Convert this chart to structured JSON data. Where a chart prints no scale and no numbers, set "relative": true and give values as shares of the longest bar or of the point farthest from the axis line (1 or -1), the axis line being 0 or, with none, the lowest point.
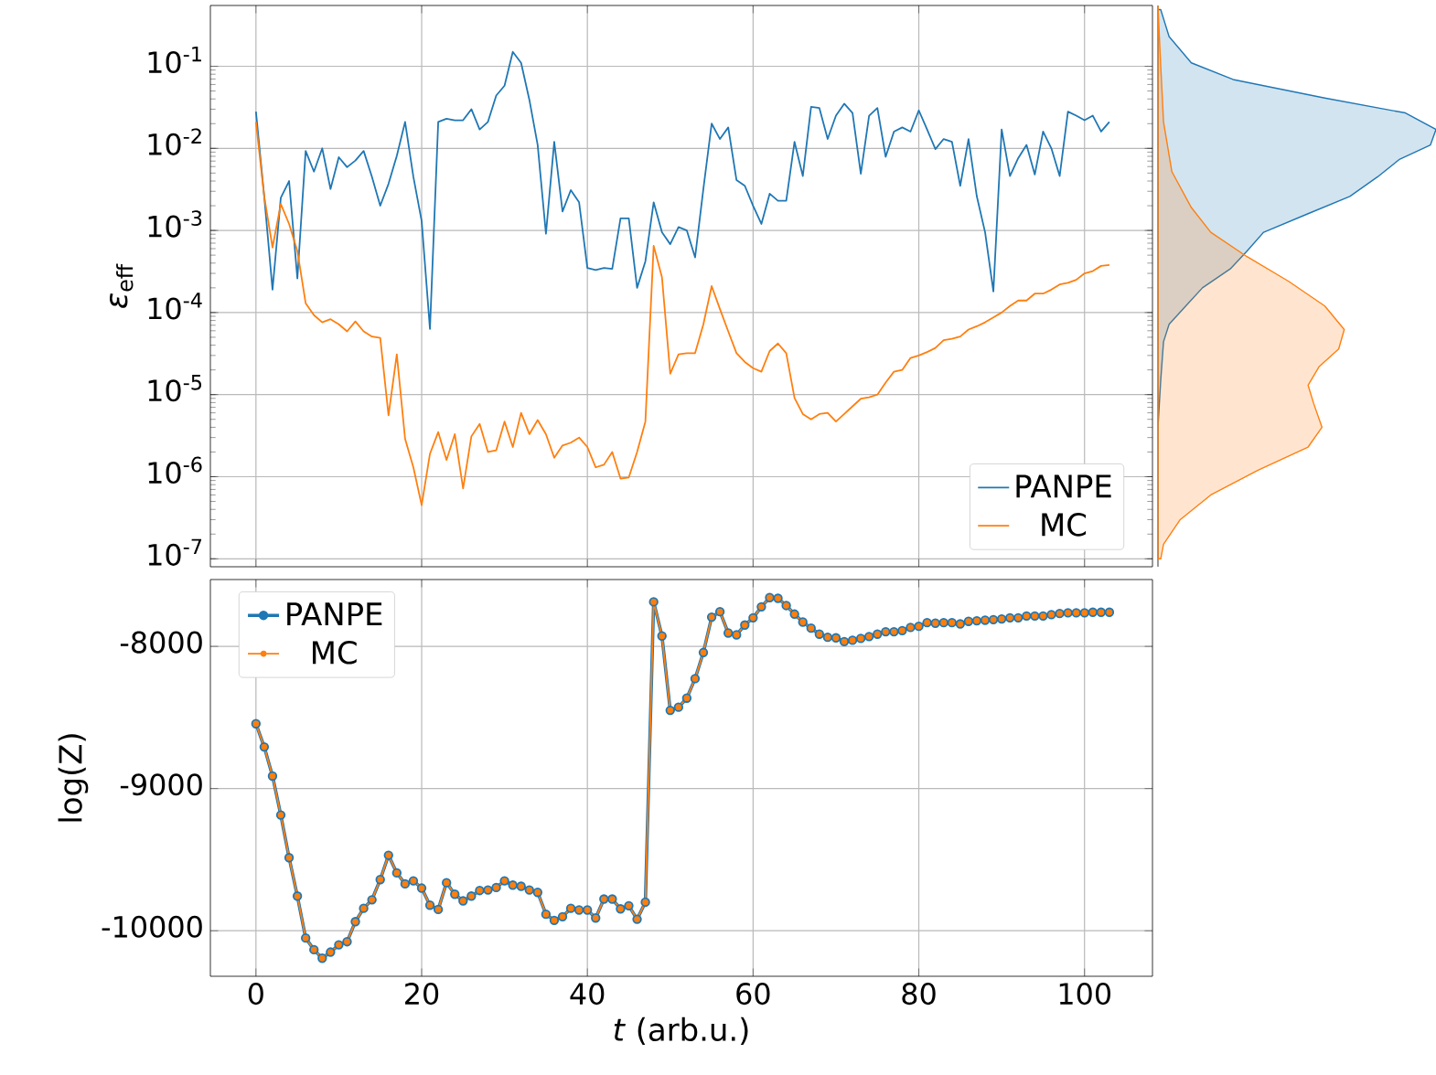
{
  "chart_data": [
    {
      "type": "line",
      "ylabel": "*ε*$_{eff}$",
      "log": "y",
      "grid": true,
      "legend": "bottom right",
      "tick_labels": "y",
      "xlim": [
        -5.5,
        108.2
      ],
      "xticks": [
        0,
        20,
        40,
        60,
        80,
        100
      ],
      "ylim": [
        8e-08,
        0.55
      ],
      "yticks": [
        {
          "value": 1e-07,
          "label": "10$^{-7}$"
        },
        {
          "value": 1e-06,
          "label": "10$^{-6}$"
        },
        {
          "value": 1e-05,
          "label": "10$^{-5}$"
        },
        {
          "value": 0.0001,
          "label": "10$^{-4}$"
        },
        {
          "value": 0.001,
          "label": "10$^{-3}$"
        },
        {
          "value": 0.01,
          "label": "10$^{-2}$"
        },
        {
          "value": 0.1,
          "label": "10$^{-1}$"
        }
      ],
      "x": [
        0,
        1,
        2,
        3,
        4,
        5,
        6,
        7,
        8,
        9,
        10,
        11,
        12,
        13,
        14,
        15,
        16,
        17,
        18,
        19,
        20,
        21,
        22,
        23,
        24,
        25,
        26,
        27,
        28,
        29,
        30,
        31,
        32,
        33,
        34,
        35,
        36,
        37,
        38,
        39,
        40,
        41,
        42,
        43,
        44,
        45,
        46,
        47,
        48,
        49,
        50,
        51,
        52,
        53,
        54,
        55,
        56,
        57,
        58,
        59,
        60,
        61,
        62,
        63,
        64,
        65,
        66,
        67,
        68,
        69,
        70,
        71,
        72,
        73,
        74,
        75,
        76,
        77,
        78,
        79,
        80,
        81,
        82,
        83,
        84,
        85,
        86,
        87,
        88,
        89,
        90,
        91,
        92,
        93,
        94,
        95,
        96,
        97,
        98,
        99,
        100,
        101,
        102,
        103
      ],
      "series": [
        {
          "name": "PANPE",
          "color": "#1f77b4",
          "values": [
            0.028,
            0.0026,
            0.00019,
            0.0025,
            0.004,
            0.00026,
            0.0093,
            0.0052,
            0.01,
            0.0032,
            0.0078,
            0.0059,
            0.0071,
            0.0093,
            0.0045,
            0.002,
            0.0037,
            0.0081,
            0.021,
            0.0045,
            0.0013,
            6.3e-05,
            0.021,
            0.023,
            0.022,
            0.022,
            0.03,
            0.017,
            0.021,
            0.044,
            0.058,
            0.15,
            0.11,
            0.039,
            0.011,
            0.00091,
            0.012,
            0.0017,
            0.0031,
            0.0022,
            0.00035,
            0.00033,
            0.00035,
            0.00034,
            0.0014,
            0.0014,
            0.0002,
            0.00042,
            0.0022,
            0.00095,
            0.00068,
            0.0011,
            0.001,
            0.00047,
            0.0032,
            0.02,
            0.013,
            0.018,
            0.0041,
            0.0035,
            0.002,
            0.0012,
            0.0028,
            0.0023,
            0.0023,
            0.012,
            0.0046,
            0.032,
            0.031,
            0.013,
            0.025,
            0.035,
            0.027,
            0.0049,
            0.025,
            0.031,
            0.0079,
            0.016,
            0.018,
            0.016,
            0.029,
            0.017,
            0.0098,
            0.013,
            0.012,
            0.0035,
            0.013,
            0.0026,
            0.00095,
            0.00018,
            0.017,
            0.0046,
            0.0076,
            0.011,
            0.0048,
            0.016,
            0.01,
            0.0046,
            0.028,
            0.025,
            0.022,
            0.025,
            0.016,
            0.021
          ]
        },
        {
          "name": "MC",
          "color": "#ff7f0e",
          "values": [
            0.021,
            0.0026,
            0.00062,
            0.0021,
            0.0012,
            0.00056,
            0.00013,
            9.3e-05,
            7.6e-05,
            8.3e-05,
            7.2e-05,
            5.9e-05,
            7.8e-05,
            5.9e-05,
            5.1e-05,
            4.9e-05,
            5.6e-06,
            3.1e-05,
            2.9e-06,
            1.3e-06,
            4.5e-07,
            1.9e-06,
            3.5e-06,
            1.6e-06,
            3.3e-06,
            7.2e-07,
            3.1e-06,
            4.4e-06,
            2e-06,
            2.1e-06,
            4.7e-06,
            2.3e-06,
            6e-06,
            3.3e-06,
            4.9e-06,
            3.3e-06,
            1.7e-06,
            2.4e-06,
            2.6e-06,
            3e-06,
            2.3e-06,
            1.3e-06,
            1.4e-06,
            2e-06,
            9.5e-07,
            9.8e-07,
            2e-06,
            4.7e-06,
            0.00065,
            0.00027,
            1.8e-05,
            3.1e-05,
            3.2e-05,
            3.2e-05,
            7.2e-05,
            0.00021,
            0.00011,
            5.9e-05,
            3.2e-05,
            2.5e-05,
            2.1e-05,
            1.9e-05,
            3.4e-05,
            4.2e-05,
            3.2e-05,
            9.1e-06,
            5.8e-06,
            5e-06,
            5.8e-06,
            6e-06,
            4.7e-06,
            5.8e-06,
            7.2e-06,
            8.9e-06,
            9.3e-06,
            1e-05,
            1.4e-05,
            1.9e-05,
            2e-05,
            2.8e-05,
            3e-05,
            3.3e-05,
            3.7e-05,
            4.6e-05,
            4.8e-05,
            5.1e-05,
            6.2e-05,
            6.8e-05,
            7.6e-05,
            8.7e-05,
            0.0001,
            0.00012,
            0.00014,
            0.00014,
            0.00017,
            0.00017,
            0.00019,
            0.00022,
            0.00023,
            0.00025,
            0.0003,
            0.00032,
            0.00037,
            0.00038
          ]
        }
      ]
    },
    {
      "type": "area",
      "orientation": "horizontal",
      "relative": true,
      "log": "y",
      "ylim": [
        8e-08,
        0.55
      ],
      "tick_labels": false,
      "series": [
        {
          "color": "#1f77b4",
          "x": [
            0.49,
            0.23,
            0.11,
            0.069,
            0.041,
            0.027,
            0.017,
            0.011,
            0.0074,
            0.0045,
            0.0026,
            0.0016,
            0.00095,
            0.00056,
            0.00034,
            0.0002,
            0.00012,
            7.2e-05,
            4.4e-05,
            1.5e-05,
            4e-06,
            1e-07
          ],
          "values": [
            0.01,
            0.04,
            0.12,
            0.27,
            0.6,
            0.89,
            1,
            0.98,
            0.87,
            0.79,
            0.69,
            0.54,
            0.38,
            0.32,
            0.26,
            0.16,
            0.1,
            0.04,
            0.02,
            0.01,
            0,
            0
          ]
        },
        {
          "color": "#ff7f0e",
          "x": [
            0.54,
            0.1,
            0.021,
            0.0052,
            0.0019,
            0.00095,
            0.00048,
            0.00024,
            0.00012,
            6.2e-05,
            3.6e-05,
            2.2e-05,
            1.3e-05,
            7.8e-06,
            4e-06,
            2.3e-06,
            1.2e-06,
            6e-07,
            3e-07,
            1.5e-07,
            1e-07
          ],
          "values": [
            0,
            0.01,
            0.02,
            0.05,
            0.12,
            0.19,
            0.32,
            0.47,
            0.6,
            0.67,
            0.65,
            0.58,
            0.54,
            0.56,
            0.59,
            0.54,
            0.36,
            0.19,
            0.08,
            0.02,
            0.01
          ]
        }
      ]
    },
    {
      "type": "line",
      "xlabel": "*t* (arb.u.)",
      "ylabel": "log(Z)",
      "grid": true,
      "legend": "top left",
      "marker": "circle",
      "xlim": [
        -5.5,
        108.2
      ],
      "xticks": [
        0,
        20,
        40,
        60,
        80,
        100
      ],
      "ylim": [
        -10320,
        -7530
      ],
      "yticks": [
        -8000,
        -9000,
        -10000
      ],
      "x": [
        0,
        1,
        2,
        3,
        4,
        5,
        6,
        7,
        8,
        9,
        10,
        11,
        12,
        13,
        14,
        15,
        16,
        17,
        18,
        19,
        20,
        21,
        22,
        23,
        24,
        25,
        26,
        27,
        28,
        29,
        30,
        31,
        32,
        33,
        34,
        35,
        36,
        37,
        38,
        39,
        40,
        41,
        42,
        43,
        44,
        45,
        46,
        47,
        48,
        49,
        50,
        51,
        52,
        53,
        54,
        55,
        56,
        57,
        58,
        59,
        60,
        61,
        62,
        63,
        64,
        65,
        66,
        67,
        68,
        69,
        70,
        71,
        72,
        73,
        74,
        75,
        76,
        77,
        78,
        79,
        80,
        81,
        82,
        83,
        84,
        85,
        86,
        87,
        88,
        89,
        90,
        91,
        92,
        93,
        94,
        95,
        96,
        97,
        98,
        99,
        100,
        101,
        102,
        103
      ],
      "series": [
        {
          "name": "PANPE",
          "color": "#1f77b4",
          "values": [
            -8544,
            -8707,
            -8912,
            -9186,
            -9486,
            -9756,
            -10051,
            -10133,
            -10193,
            -10150,
            -10099,
            -10077,
            -9936,
            -9842,
            -9782,
            -9640,
            -9469,
            -9593,
            -9670,
            -9649,
            -9700,
            -9820,
            -9850,
            -9662,
            -9743,
            -9790,
            -9756,
            -9717,
            -9713,
            -9696,
            -9649,
            -9679,
            -9687,
            -9713,
            -9730,
            -9884,
            -9927,
            -9901,
            -9842,
            -9854,
            -9854,
            -9910,
            -9777,
            -9777,
            -9846,
            -9824,
            -9919,
            -9799,
            -7687,
            -7927,
            -8450,
            -8428,
            -8364,
            -8227,
            -8043,
            -7794,
            -7756,
            -7906,
            -7919,
            -7850,
            -7799,
            -7722,
            -7657,
            -7662,
            -7713,
            -7773,
            -7829,
            -7872,
            -7914,
            -7936,
            -7940,
            -7966,
            -7957,
            -7944,
            -7931,
            -7914,
            -7897,
            -7897,
            -7889,
            -7867,
            -7859,
            -7833,
            -7837,
            -7833,
            -7833,
            -7842,
            -7824,
            -7820,
            -7816,
            -7812,
            -7807,
            -7799,
            -7799,
            -7786,
            -7786,
            -7786,
            -7777,
            -7769,
            -7764,
            -7764,
            -7764,
            -7760,
            -7760,
            -7760
          ]
        },
        {
          "name": "MC",
          "color": "#ff7f0e",
          "values": [
            -8544,
            -8707,
            -8912,
            -9186,
            -9486,
            -9756,
            -10051,
            -10133,
            -10193,
            -10150,
            -10099,
            -10077,
            -9936,
            -9842,
            -9782,
            -9640,
            -9469,
            -9593,
            -9670,
            -9649,
            -9700,
            -9820,
            -9850,
            -9662,
            -9743,
            -9790,
            -9756,
            -9717,
            -9713,
            -9696,
            -9649,
            -9679,
            -9687,
            -9713,
            -9730,
            -9884,
            -9927,
            -9901,
            -9842,
            -9854,
            -9854,
            -9910,
            -9777,
            -9777,
            -9846,
            -9824,
            -9919,
            -9799,
            -7687,
            -7927,
            -8450,
            -8428,
            -8364,
            -8227,
            -8043,
            -7794,
            -7756,
            -7906,
            -7919,
            -7850,
            -7799,
            -7722,
            -7657,
            -7662,
            -7713,
            -7773,
            -7829,
            -7872,
            -7914,
            -7936,
            -7940,
            -7966,
            -7957,
            -7944,
            -7931,
            -7914,
            -7897,
            -7897,
            -7889,
            -7867,
            -7859,
            -7833,
            -7837,
            -7833,
            -7833,
            -7842,
            -7824,
            -7820,
            -7816,
            -7812,
            -7807,
            -7799,
            -7799,
            -7786,
            -7786,
            -7786,
            -7777,
            -7769,
            -7764,
            -7764,
            -7764,
            -7760,
            -7760,
            -7760
          ]
        }
      ]
    }
  ]
}
